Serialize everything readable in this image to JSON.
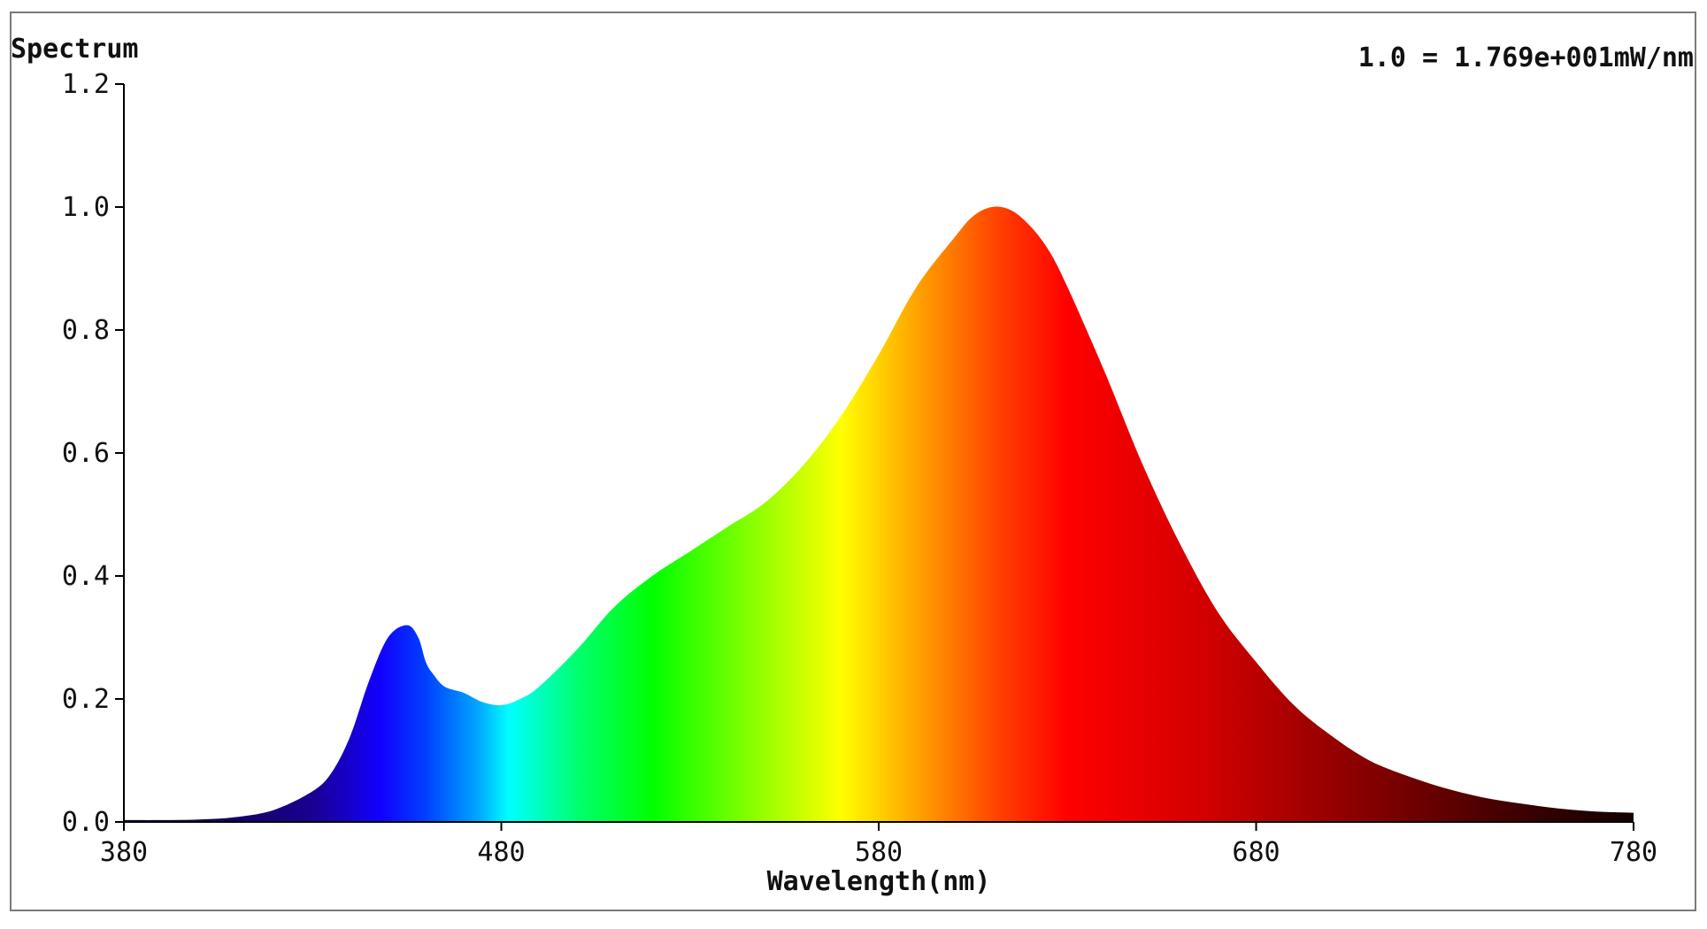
{
  "chart_data": {
    "type": "area",
    "title": "Spectrum",
    "annotation": "1.0 = 1.769e+001mW/nm",
    "xlabel": "Wavelength(nm)",
    "ylabel": "",
    "xlim": [
      380,
      780
    ],
    "ylim": [
      0.0,
      1.2
    ],
    "x_ticks": [
      "380",
      "480",
      "580",
      "680",
      "780"
    ],
    "y_ticks": [
      "0.0",
      "0.2",
      "0.4",
      "0.6",
      "0.8",
      "1.0",
      "1.2"
    ],
    "grid": false,
    "legend": "none",
    "fill": "visible-spectrum-gradient",
    "x": [
      380,
      390,
      400,
      410,
      420,
      430,
      435,
      440,
      445,
      450,
      455,
      458,
      460,
      462,
      465,
      470,
      475,
      480,
      485,
      490,
      500,
      510,
      520,
      530,
      540,
      550,
      560,
      570,
      580,
      590,
      600,
      605,
      610,
      615,
      620,
      625,
      630,
      640,
      650,
      660,
      670,
      680,
      690,
      700,
      710,
      720,
      730,
      740,
      750,
      760,
      770,
      780
    ],
    "y": [
      0.003,
      0.003,
      0.004,
      0.008,
      0.02,
      0.05,
      0.08,
      0.14,
      0.23,
      0.3,
      0.32,
      0.3,
      0.26,
      0.24,
      0.22,
      0.21,
      0.195,
      0.19,
      0.2,
      0.22,
      0.28,
      0.35,
      0.4,
      0.44,
      0.48,
      0.52,
      0.58,
      0.66,
      0.76,
      0.87,
      0.95,
      0.985,
      1.0,
      0.995,
      0.97,
      0.93,
      0.87,
      0.73,
      0.58,
      0.45,
      0.34,
      0.26,
      0.19,
      0.14,
      0.1,
      0.075,
      0.055,
      0.04,
      0.03,
      0.022,
      0.017,
      0.015
    ]
  },
  "colors": {
    "axis": "#000000",
    "frame": "#7a7a7a",
    "text": "#111111",
    "background": "#ffffff"
  }
}
